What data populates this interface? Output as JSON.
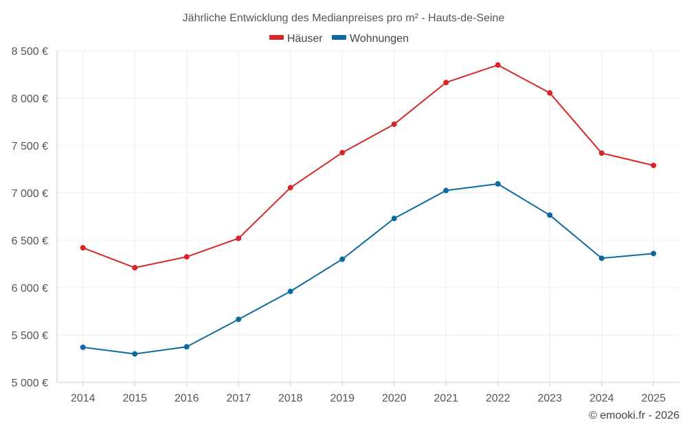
{
  "chart_data": {
    "type": "line",
    "title": "Jährliche Entwicklung des Medianpreises pro m² - Hauts-de-Seine",
    "categories": [
      "2014",
      "2015",
      "2016",
      "2017",
      "2018",
      "2019",
      "2020",
      "2021",
      "2022",
      "2023",
      "2024",
      "2025"
    ],
    "series": [
      {
        "name": "Häuser",
        "color": "#d62728",
        "values": [
          6420,
          6210,
          6325,
          6520,
          7055,
          7425,
          7725,
          8165,
          8350,
          8055,
          7420,
          7290
        ]
      },
      {
        "name": "Wohnungen",
        "color": "#0d6aa0",
        "values": [
          5370,
          5300,
          5375,
          5665,
          5960,
          6300,
          6730,
          7025,
          7095,
          6765,
          6310,
          6360
        ]
      }
    ],
    "ylim": [
      5000,
      8500
    ],
    "yticks": [
      5000,
      5500,
      6000,
      6500,
      7000,
      7500,
      8000,
      8500
    ],
    "ytick_labels": [
      "5 000 €",
      "5 500 €",
      "6 000 €",
      "6 500 €",
      "7 000 €",
      "7 500 €",
      "8 000 €",
      "8 500 €"
    ],
    "xlabel": "",
    "ylabel": "",
    "grid": true,
    "legend": "top-center"
  },
  "credit": "© emooki.fr - 2026"
}
